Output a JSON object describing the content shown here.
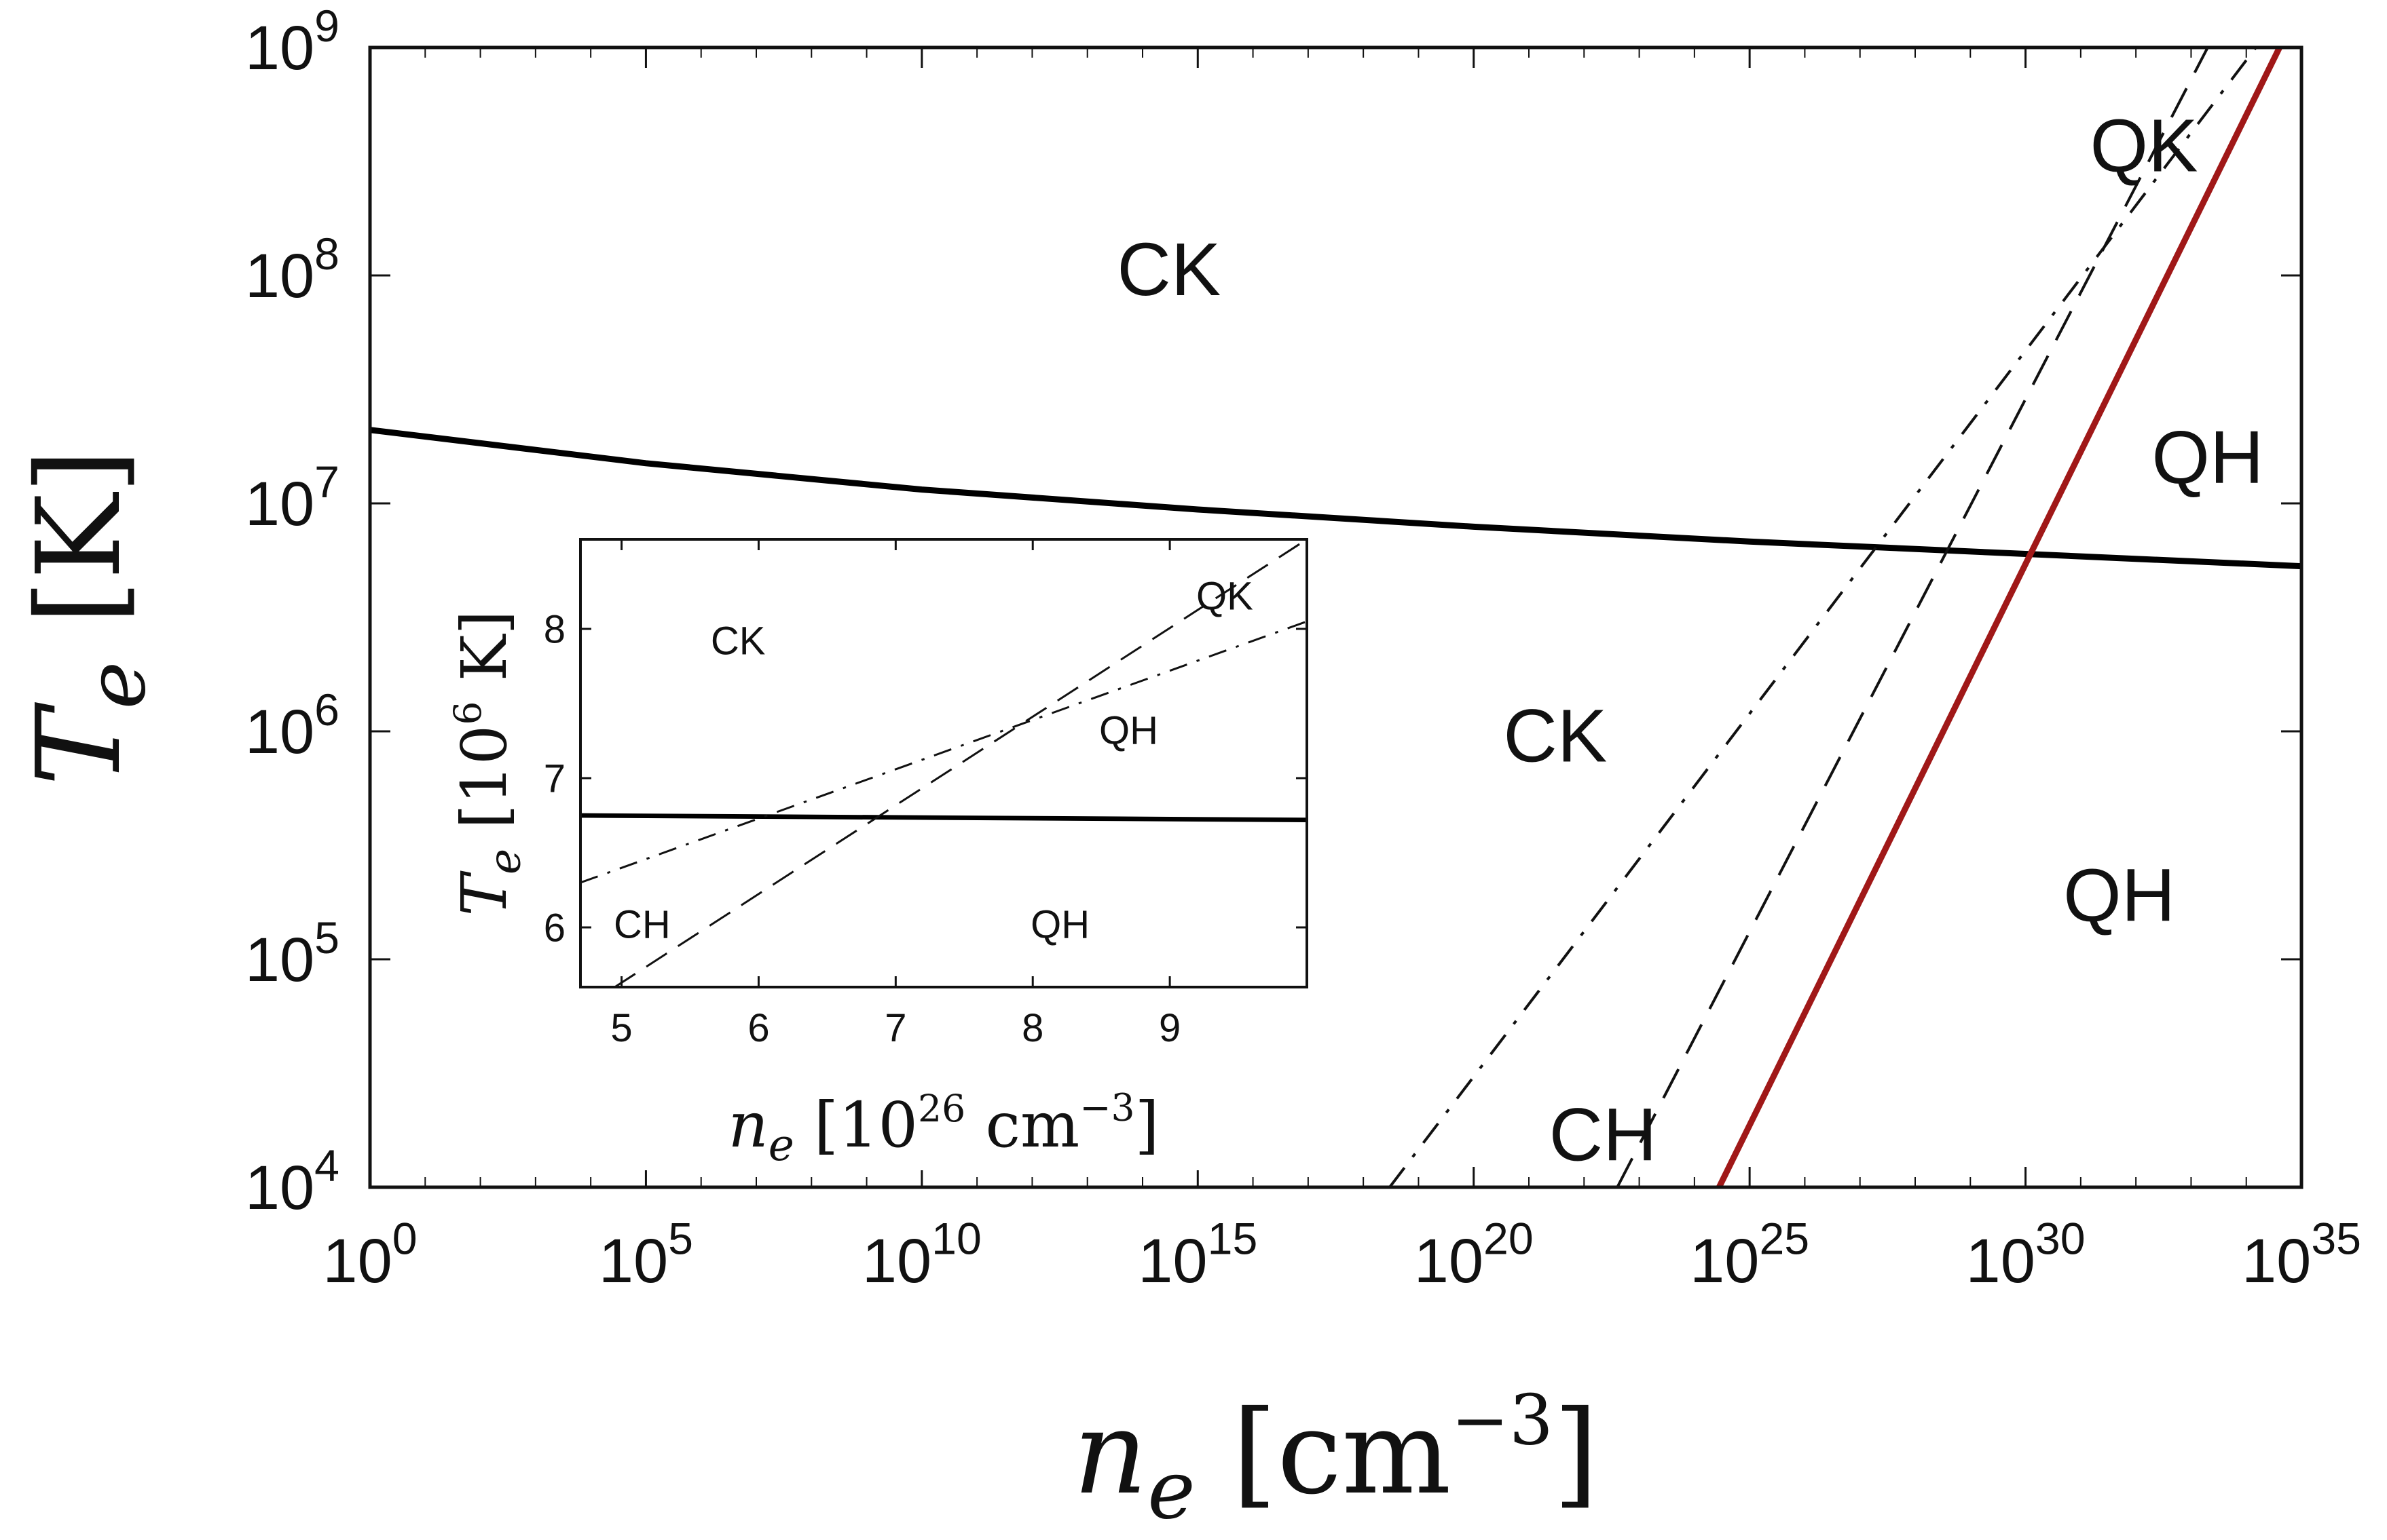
{
  "chart_data": [
    {
      "type": "line",
      "title": "",
      "xlabel": {
        "var": "n",
        "sub": "e",
        "unit": "cm",
        "exp": "−3"
      },
      "ylabel": {
        "var": "T",
        "sub": "e",
        "unit": "K"
      },
      "xscale": "log",
      "yscale": "log",
      "xlim": [
        1,
        1e+35
      ],
      "ylim": [
        10000.0,
        1000000000.0
      ],
      "grid": false,
      "xticks": [
        {
          "base": "10",
          "exp": "0"
        },
        {
          "base": "10",
          "exp": "5"
        },
        {
          "base": "10",
          "exp": "10"
        },
        {
          "base": "10",
          "exp": "15"
        },
        {
          "base": "10",
          "exp": "20"
        },
        {
          "base": "10",
          "exp": "25"
        },
        {
          "base": "10",
          "exp": "30"
        },
        {
          "base": "10",
          "exp": "35"
        }
      ],
      "yticks": [
        {
          "base": "10",
          "exp": "4"
        },
        {
          "base": "10",
          "exp": "5"
        },
        {
          "base": "10",
          "exp": "6"
        },
        {
          "base": "10",
          "exp": "7"
        },
        {
          "base": "10",
          "exp": "8"
        },
        {
          "base": "10",
          "exp": "9"
        }
      ],
      "series": [
        {
          "style": "solid-thick",
          "color": "#000000",
          "x": [
            1,
            100000.0,
            10000000000.0,
            1000000000000000.0,
            1e+20,
            1e+25,
            1e+30,
            1e+35
          ],
          "y": [
            21000000.0,
            15000000.0,
            11500000.0,
            9400000.0,
            7900000.0,
            6800000.0,
            6000000.0,
            5300000.0
          ]
        },
        {
          "style": "solid-red",
          "color": "#a01818",
          "x": [
            2.8e+24,
            4e+34
          ],
          "y": [
            10000.0,
            1000000000.0
          ]
        },
        {
          "style": "dashed",
          "color": "#111111",
          "x": [
            4e+22,
            2e+33
          ],
          "y": [
            10000.0,
            1000000000.0
          ]
        },
        {
          "style": "dash-dot",
          "color": "#111111",
          "x": [
            3e+18,
            1.5e+34
          ],
          "y": [
            10000.0,
            1000000000.0
          ]
        }
      ],
      "annotations": [
        {
          "text": "CK",
          "x": 300000000000000.0,
          "y": 100000000.0
        },
        {
          "text": "CK",
          "x": 3e+21,
          "y": 900000.0
        },
        {
          "text": "CH",
          "x": 2.2e+22,
          "y": 16000.0
        },
        {
          "text": "QK",
          "x": 1.4e+32,
          "y": 350000000.0
        },
        {
          "text": "QH",
          "x": 2e+33,
          "y": 15000000.0
        },
        {
          "text": "QH",
          "x": 5e+31,
          "y": 180000.0
        }
      ]
    },
    {
      "type": "line",
      "title": "",
      "xlabel": {
        "var": "n",
        "sub": "e",
        "unit": "cm",
        "prefix_base": "10",
        "prefix_exp": "26",
        "exp": "−3"
      },
      "ylabel": {
        "var": "T",
        "sub": "e",
        "unit": "K",
        "prefix_base": "10",
        "prefix_exp": "6"
      },
      "xlim": [
        4.7,
        10
      ],
      "ylim": [
        5.6,
        8.6
      ],
      "grid": false,
      "xticks": [
        "5",
        "6",
        "7",
        "8",
        "9"
      ],
      "yticks": [
        "6",
        "7",
        "8"
      ],
      "series": [
        {
          "style": "solid-thick",
          "color": "#000000",
          "x": [
            4.7,
            10
          ],
          "y": [
            6.75,
            6.72
          ]
        },
        {
          "style": "dashed",
          "color": "#111111",
          "x": [
            4.95,
            10
          ],
          "y": [
            5.6,
            8.6
          ]
        },
        {
          "style": "dash-dot",
          "color": "#111111",
          "x": [
            4.7,
            10
          ],
          "y": [
            6.3,
            8.05
          ]
        }
      ],
      "annotations": [
        {
          "text": "CK",
          "x": 5.85,
          "y": 7.9
        },
        {
          "text": "QK",
          "x": 9.4,
          "y": 8.2
        },
        {
          "text": "QH",
          "x": 8.7,
          "y": 7.3
        },
        {
          "text": "CH",
          "x": 5.15,
          "y": 6.0
        },
        {
          "text": "QH",
          "x": 8.2,
          "y": 6.0
        }
      ]
    }
  ]
}
